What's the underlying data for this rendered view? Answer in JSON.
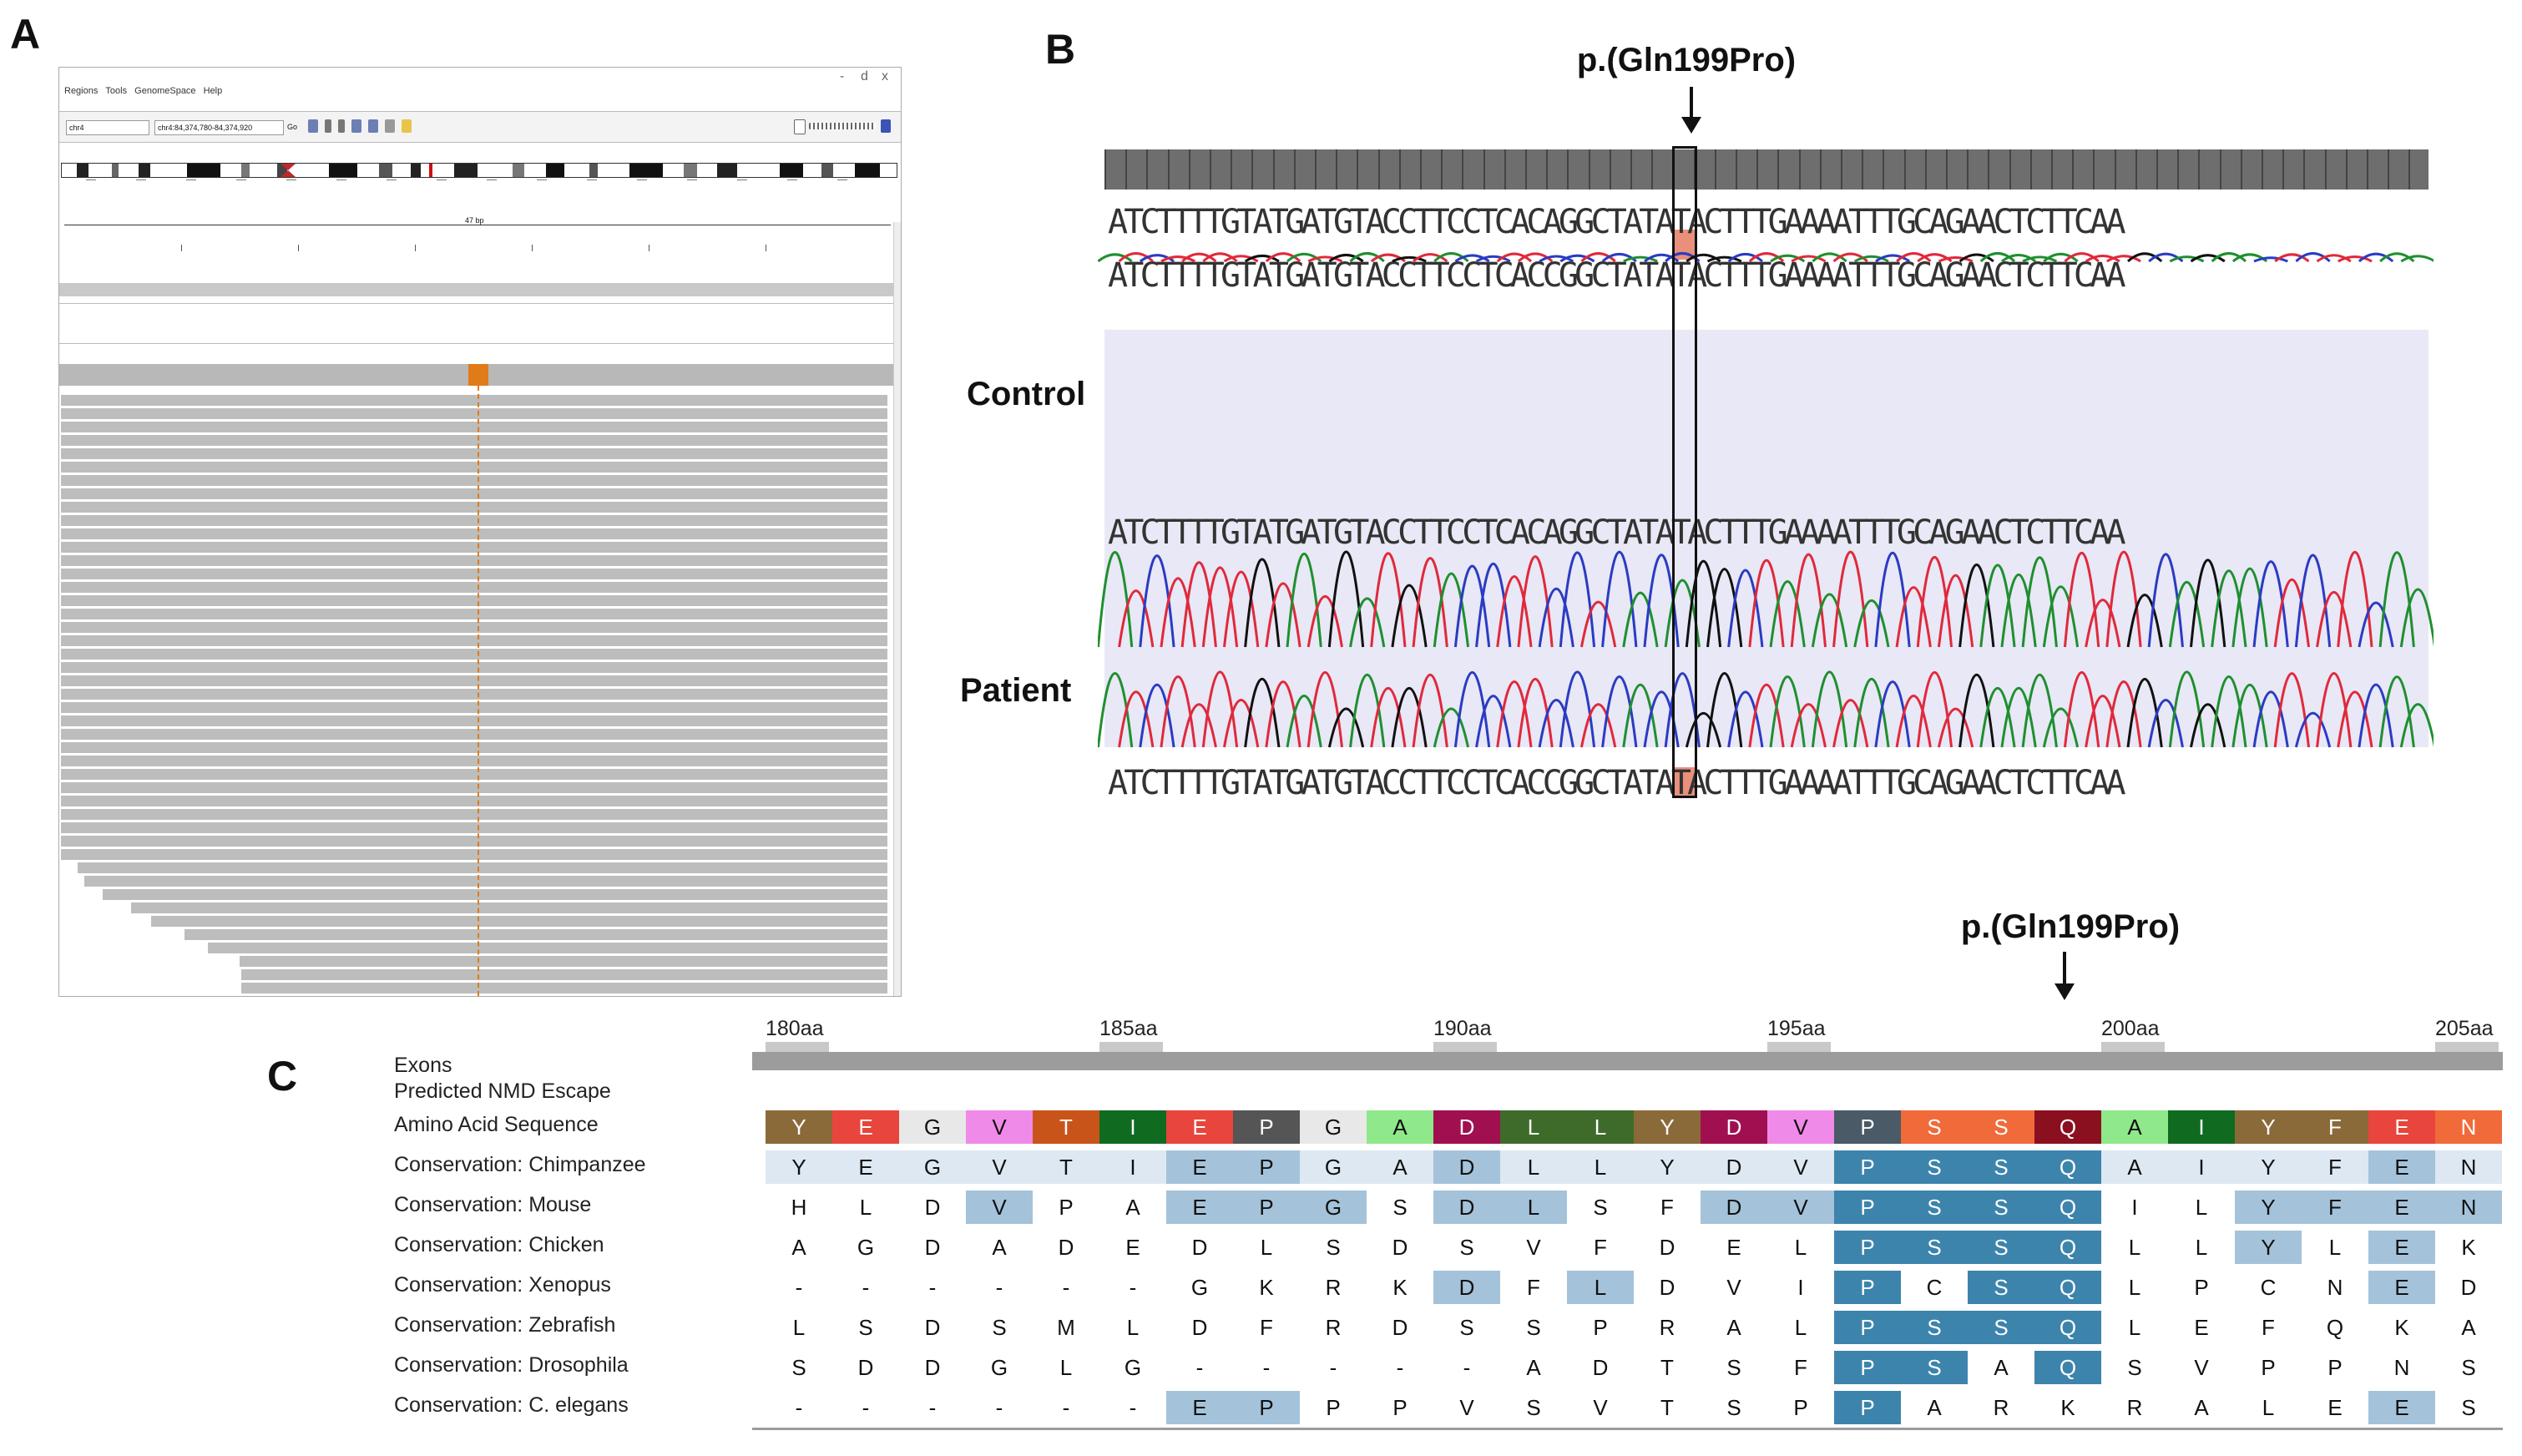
{
  "panels": {
    "a": "A",
    "b": "B",
    "c": "C"
  },
  "panel_a": {
    "window_controls": [
      "-",
      "d",
      "x"
    ],
    "menu": [
      "Regions",
      "Tools",
      "GenomeSpace",
      "Help"
    ],
    "chrom_select": "chr4",
    "locus_box": "chr4:84,374,780-84,374,920",
    "go_label": "Go",
    "ruler_center": "47 bp"
  },
  "panel_b": {
    "mutation_label": "p.(Gln199Pro)",
    "control_label": "Control",
    "patient_label": "Patient",
    "seq_ref": "ATCTTTTGTATGATGTACCTTCCTCACAGGCTATATACTTTGAAAATTTGCAGAACTCTTCAA",
    "seq_control_top": "ATCTTTTGTATGATGTACCTTCCTCACCGGCTATATACTTTGAAAATTTGCAGAACTCTTCAA",
    "seq_control_bottom": "ATCTTTTGTATGATGTACCTTCCTCACAGGCTATATACTTTGAAAATTTGCAGAACTCTTCAA",
    "seq_patient_bottom": "ATCTTTTGTATGATGTACCTTCCTCACCGGCTATATACTTTGAAAATTTGCAGAACTCTTCAA",
    "colors": {
      "A": "#1f8f2f",
      "C": "#2b3bc2",
      "G": "#111111",
      "T": "#e0293b",
      "highlight": "#e8907a"
    }
  },
  "panel_c": {
    "mutation_label": "p.(Gln199Pro)",
    "axis_ticks": [
      "180aa",
      "185aa",
      "190aa",
      "195aa",
      "200aa",
      "205aa"
    ],
    "rows": [
      {
        "label": "Exons"
      },
      {
        "label": "Predicted NMD Escape"
      },
      {
        "label": "Amino Acid Sequence",
        "seq": [
          "Y",
          "E",
          "G",
          "V",
          "T",
          "I",
          "E",
          "P",
          "G",
          "A",
          "D",
          "L",
          "L",
          "Y",
          "D",
          "V",
          "P",
          "S",
          "S",
          "Q",
          "A",
          "I",
          "Y",
          "F",
          "E",
          "N"
        ]
      },
      {
        "label": "Conservation: Chimpanzee",
        "seq": [
          "Y",
          "E",
          "G",
          "V",
          "T",
          "I",
          "E",
          "P",
          "G",
          "A",
          "D",
          "L",
          "L",
          "Y",
          "D",
          "V",
          "P",
          "S",
          "S",
          "Q",
          "A",
          "I",
          "Y",
          "F",
          "E",
          "N"
        ]
      },
      {
        "label": "Conservation: Mouse",
        "seq": [
          "H",
          "L",
          "D",
          "V",
          "P",
          "A",
          "E",
          "P",
          "G",
          "S",
          "D",
          "L",
          "S",
          "F",
          "D",
          "V",
          "P",
          "S",
          "S",
          "Q",
          "I",
          "L",
          "Y",
          "F",
          "E",
          "N"
        ]
      },
      {
        "label": "Conservation: Chicken",
        "seq": [
          "A",
          "G",
          "D",
          "A",
          "D",
          "E",
          "D",
          "L",
          "S",
          "D",
          "S",
          "V",
          "F",
          "D",
          "E",
          "L",
          "P",
          "S",
          "S",
          "Q",
          "L",
          "L",
          "Y",
          "L",
          "E",
          "K"
        ]
      },
      {
        "label": "Conservation: Xenopus",
        "seq": [
          "-",
          "-",
          "-",
          "-",
          "-",
          "-",
          "G",
          "K",
          "R",
          "K",
          "D",
          "F",
          "L",
          "D",
          "V",
          "I",
          "P",
          "C",
          "S",
          "Q",
          "L",
          "P",
          "C",
          "N",
          "E",
          "D"
        ]
      },
      {
        "label": "Conservation: Zebrafish",
        "seq": [
          "L",
          "S",
          "D",
          "S",
          "M",
          "L",
          "D",
          "F",
          "R",
          "D",
          "S",
          "S",
          "P",
          "R",
          "A",
          "L",
          "P",
          "S",
          "S",
          "Q",
          "L",
          "E",
          "F",
          "Q",
          "K",
          "A"
        ]
      },
      {
        "label": "Conservation: Drosophila",
        "seq": [
          "S",
          "D",
          "D",
          "G",
          "L",
          "G",
          "-",
          "-",
          "-",
          "-",
          "-",
          "A",
          "D",
          "T",
          "S",
          "F",
          "P",
          "S",
          "A",
          "Q",
          "S",
          "V",
          "P",
          "P",
          "N",
          "S"
        ]
      },
      {
        "label": "Conservation: C. elegans",
        "seq": [
          "-",
          "-",
          "-",
          "-",
          "-",
          "-",
          "E",
          "P",
          "P",
          "P",
          "V",
          "S",
          "V",
          "T",
          "S",
          "P",
          "P",
          "A",
          "R",
          "K",
          "R",
          "A",
          "L",
          "E",
          "E",
          "S"
        ]
      }
    ],
    "aa_colors": [
      "#8b6a3a",
      "#e8453c",
      "#e8e8e8",
      "#f08ae8",
      "#c9541a",
      "#106b20",
      "#e8453c",
      "#555555",
      "#e8e8e8",
      "#8fe88a",
      "#a01050",
      "#3f6b2a",
      "#3f6b2a",
      "#8b6a3a",
      "#a01050",
      "#f08ae8",
      "#4a5a66",
      "#f06a3a",
      "#f06a3a",
      "#8a1020",
      "#8fe88a",
      "#106b20",
      "#8b6a3a",
      "#8b6a3a",
      "#e8453c",
      "#f06a3a"
    ],
    "conservation_colors": {
      "light": "#dde8f2",
      "medium": "#a4c3da",
      "dark": "#6aa0c4",
      "darkest": "#3d84ad"
    }
  }
}
